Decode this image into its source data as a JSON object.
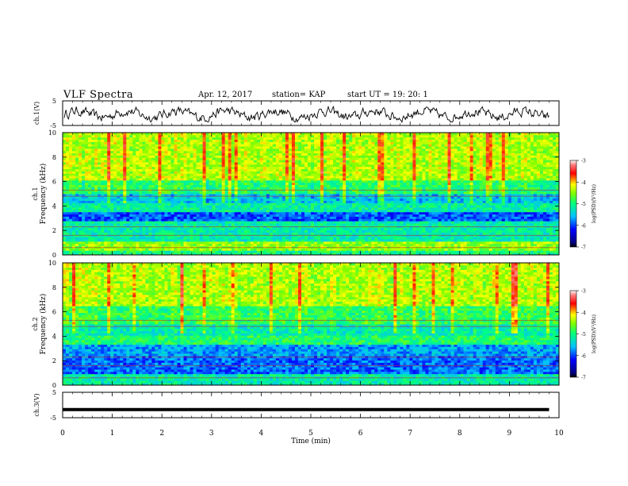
{
  "header": {
    "title": "VLF Spectra",
    "date": "Apr. 12, 2017",
    "station": "station= KAP",
    "start": "start  UT =   19: 20: 1"
  },
  "chart_data": [
    {
      "type": "line",
      "panel": "ch1-waveform",
      "ylabel": "ch.1(V)",
      "ylim": [
        -5,
        5
      ],
      "yticks": [
        "5",
        "-5"
      ],
      "x_range_min": [
        0,
        9.8
      ],
      "description_values": "noisy voltage trace fluctuating roughly between -3 and 2 V"
    },
    {
      "type": "heatmap",
      "panel": "ch1-spectrogram",
      "ylabel": "ch.1\nFrequency (kHz)",
      "ylim": [
        0,
        10
      ],
      "yticks": [
        "0",
        "2",
        "4",
        "6",
        "8",
        "10"
      ],
      "colorbar": {
        "label": "log(PSD)(V²/Hz)",
        "range": [
          -7,
          -3
        ],
        "ticks": [
          "-3",
          "-4",
          "-5",
          "-6",
          "-7"
        ]
      }
    },
    {
      "type": "heatmap",
      "panel": "ch2-spectrogram",
      "ylabel": "ch.2\nFrequency (kHz)",
      "ylim": [
        0,
        10
      ],
      "yticks": [
        "0",
        "2",
        "4",
        "6",
        "8",
        "10"
      ],
      "colorbar": {
        "label": "log(PSD)(V²/Hz)",
        "range": [
          -7,
          -3
        ],
        "ticks": [
          "-3",
          "-4",
          "-5",
          "-6",
          "-7"
        ]
      }
    },
    {
      "type": "line",
      "panel": "ch3-waveform",
      "ylabel": "ch.3(V)",
      "ylim": [
        -5,
        5
      ],
      "yticks": [
        "5",
        "-5"
      ],
      "constant_value": -1.8
    }
  ],
  "xaxis": {
    "label": "Time (min)",
    "range": [
      0,
      10
    ],
    "ticks": [
      "0",
      "1",
      "2",
      "3",
      "4",
      "5",
      "6",
      "7",
      "8",
      "9",
      "10"
    ]
  }
}
